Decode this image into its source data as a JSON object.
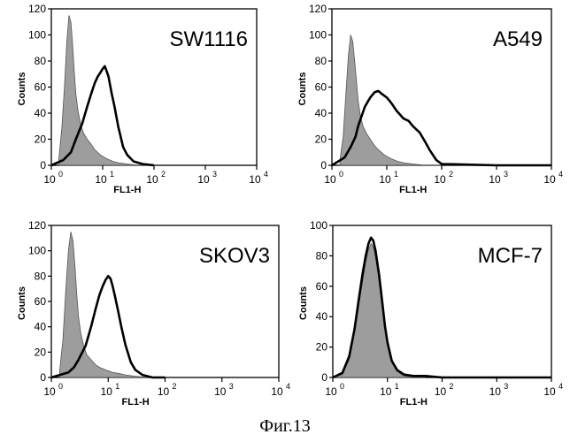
{
  "figure": {
    "caption": "Фиг.13"
  },
  "chart_data": [
    {
      "type": "area",
      "cell_line": "SW1116",
      "xlabel": "FL1-H",
      "ylabel": "Counts",
      "x_scale": "log",
      "xlim": [
        1,
        10000
      ],
      "ylim": [
        0,
        120
      ],
      "x_tick_labels": [
        "10",
        "10",
        "10",
        "10",
        "10"
      ],
      "x_tick_exponents": [
        "0",
        "1",
        "2",
        "3",
        "4"
      ],
      "y_tick_labels": [
        "0",
        "20",
        "40",
        "60",
        "80",
        "100",
        "120"
      ],
      "grid": false,
      "control_color": "#8c8c8c",
      "series": [
        {
          "role": "control",
          "x": [
            1.4,
            1.6,
            1.8,
            2.0,
            2.2,
            2.4,
            2.6,
            2.8,
            3.0,
            3.3,
            3.7,
            4.2,
            5,
            6,
            7,
            9,
            12,
            16,
            20,
            30,
            50,
            100
          ],
          "y": [
            5,
            28,
            60,
            95,
            115,
            110,
            92,
            72,
            55,
            42,
            32,
            25,
            20,
            16,
            12,
            8,
            5,
            3,
            2,
            1,
            0,
            0
          ]
        },
        {
          "role": "stained",
          "x": [
            1,
            1.7,
            2.4,
            3,
            4,
            5,
            6,
            7,
            8,
            9,
            10,
            11,
            12,
            13,
            15,
            17,
            20,
            25,
            30,
            40,
            60,
            100
          ],
          "y": [
            0,
            4,
            10,
            20,
            32,
            45,
            55,
            63,
            68,
            71,
            74,
            76,
            72,
            68,
            55,
            45,
            30,
            14,
            8,
            3,
            1,
            0
          ]
        }
      ]
    },
    {
      "type": "area",
      "cell_line": "A549",
      "xlabel": "FL1-H",
      "ylabel": "Counts",
      "x_scale": "log",
      "xlim": [
        1,
        10000
      ],
      "ylim": [
        0,
        120
      ],
      "x_tick_labels": [
        "10",
        "10",
        "10",
        "10",
        "10"
      ],
      "x_tick_exponents": [
        "0",
        "1",
        "2",
        "3",
        "4"
      ],
      "y_tick_labels": [
        "0",
        "20",
        "40",
        "60",
        "80",
        "100",
        "120"
      ],
      "grid": false,
      "control_color": "#8c8c8c",
      "series": [
        {
          "role": "control",
          "x": [
            1.4,
            1.6,
            1.8,
            2.0,
            2.2,
            2.4,
            2.6,
            2.8,
            3.0,
            3.3,
            3.7,
            4.2,
            5,
            6,
            7,
            9,
            12,
            16,
            20,
            30,
            50,
            100
          ],
          "y": [
            4,
            22,
            55,
            85,
            100,
            95,
            80,
            65,
            50,
            38,
            30,
            25,
            20,
            15,
            12,
            8,
            5,
            3,
            2,
            1,
            0,
            0
          ]
        },
        {
          "role": "stained",
          "x": [
            1,
            1.7,
            2.2,
            2.7,
            3,
            3.5,
            4,
            5,
            6,
            7,
            8,
            10,
            12,
            15,
            20,
            25,
            30,
            40,
            50,
            60,
            80,
            100,
            1000,
            10000
          ],
          "y": [
            0,
            6,
            14,
            22,
            30,
            38,
            45,
            52,
            56,
            57,
            55,
            52,
            48,
            42,
            36,
            34,
            30,
            25,
            18,
            12,
            4,
            1,
            0,
            0
          ]
        }
      ]
    },
    {
      "type": "area",
      "cell_line": "SKOV3",
      "xlabel": "FL1-H",
      "ylabel": "Counts",
      "x_scale": "log",
      "xlim": [
        1,
        10000
      ],
      "ylim": [
        0,
        120
      ],
      "x_tick_labels": [
        "10",
        "10",
        "10",
        "10",
        "10"
      ],
      "x_tick_exponents": [
        "0",
        "1",
        "2",
        "3",
        "4"
      ],
      "y_tick_labels": [
        "0",
        "20",
        "40",
        "60",
        "80",
        "100",
        "120"
      ],
      "grid": false,
      "control_color": "#8c8c8c",
      "series": [
        {
          "role": "control",
          "x": [
            1.4,
            1.6,
            1.8,
            2.0,
            2.2,
            2.4,
            2.6,
            2.8,
            3.0,
            3.3,
            3.7,
            4.2,
            5,
            6,
            7,
            9,
            12,
            16,
            20,
            30,
            50,
            100
          ],
          "y": [
            5,
            30,
            70,
            100,
            115,
            108,
            88,
            66,
            48,
            35,
            25,
            18,
            14,
            10,
            8,
            6,
            4,
            3,
            2,
            1,
            0,
            0
          ]
        },
        {
          "role": "stained",
          "x": [
            1,
            2,
            2.5,
            3,
            4,
            5,
            6,
            7,
            8,
            9,
            10,
            11,
            12,
            13,
            15,
            17,
            20,
            25,
            30,
            40,
            60,
            100
          ],
          "y": [
            0,
            4,
            8,
            14,
            25,
            40,
            54,
            65,
            72,
            77,
            80,
            78,
            72,
            65,
            52,
            40,
            26,
            12,
            6,
            2,
            0,
            0
          ]
        }
      ]
    },
    {
      "type": "area",
      "cell_line": "MCF-7",
      "xlabel": "FL1-H",
      "ylabel": "Counts",
      "x_scale": "log",
      "xlim": [
        1,
        10000
      ],
      "ylim": [
        0,
        100
      ],
      "x_tick_labels": [
        "10",
        "10",
        "10",
        "10",
        "10"
      ],
      "x_tick_exponents": [
        "0",
        "1",
        "2",
        "3",
        "4"
      ],
      "y_tick_labels": [
        "0",
        "20",
        "40",
        "60",
        "80",
        "100"
      ],
      "grid": false,
      "control_color": "#8c8c8c",
      "series": [
        {
          "role": "control",
          "x": [
            1,
            1.5,
            2,
            2.5,
            3,
            3.5,
            4,
            4.5,
            5,
            5.5,
            6,
            7,
            8,
            9,
            10,
            12,
            15,
            20,
            30,
            50
          ],
          "y": [
            0,
            2,
            12,
            30,
            48,
            63,
            76,
            84,
            88,
            86,
            80,
            64,
            48,
            32,
            22,
            10,
            4,
            1,
            0,
            0
          ]
        },
        {
          "role": "stained",
          "x": [
            1,
            1.5,
            2,
            2.5,
            3,
            3.5,
            4,
            4.5,
            5,
            5.5,
            6,
            7,
            8,
            9,
            10,
            12,
            15,
            20,
            30,
            50,
            100,
            1000,
            10000
          ],
          "y": [
            0,
            3,
            14,
            32,
            52,
            68,
            80,
            88,
            92,
            90,
            84,
            68,
            50,
            34,
            23,
            11,
            5,
            2,
            1,
            1,
            0,
            0,
            0
          ]
        }
      ]
    }
  ]
}
